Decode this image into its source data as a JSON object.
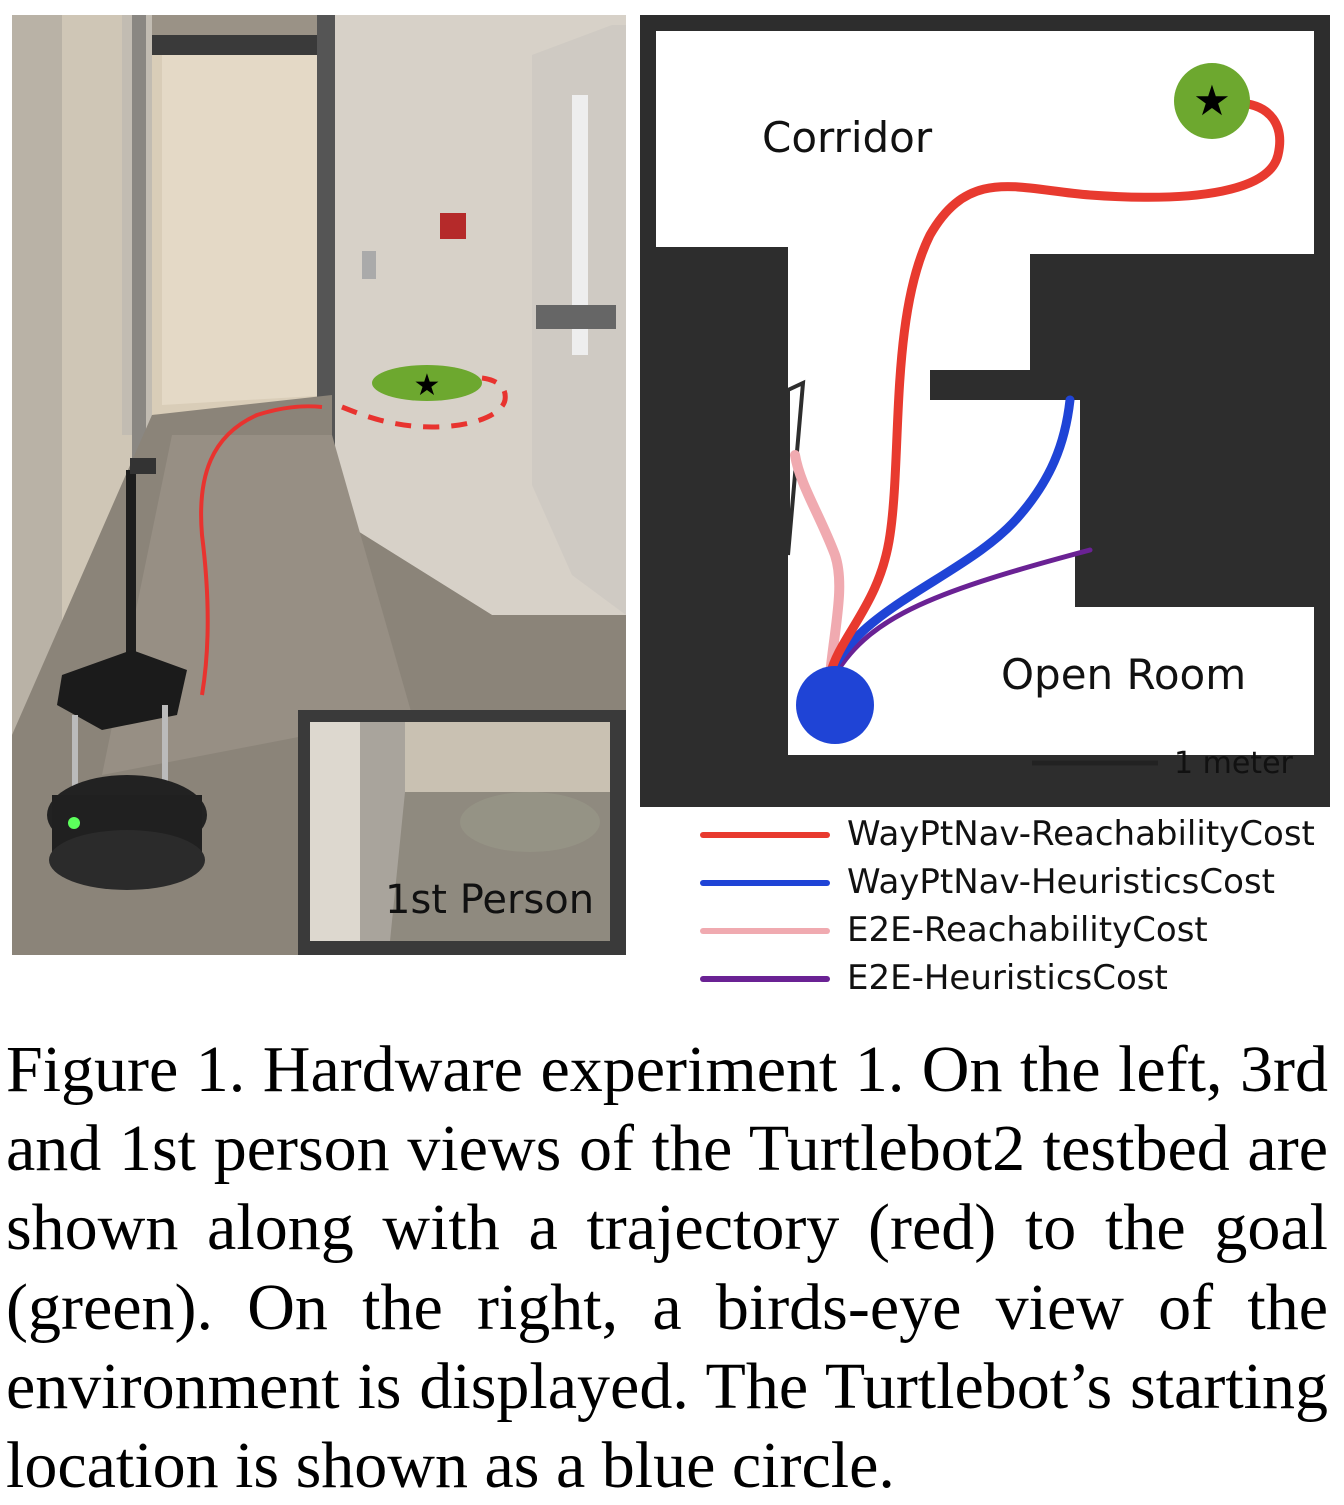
{
  "photo": {
    "inset_label": "1st Person"
  },
  "map": {
    "corridor_label": "Corridor",
    "open_room_label": "Open Room",
    "scale_label": "1 meter"
  },
  "legend": [
    {
      "label": "WayPtNav-ReachabilityCost",
      "color": "#e83a2f"
    },
    {
      "label": "WayPtNav-HeuristicsCost",
      "color": "#1f44d6"
    },
    {
      "label": "E2E-ReachabilityCost",
      "color": "#f0aab0"
    },
    {
      "label": "E2E-HeuristicsCost",
      "color": "#6a2294"
    }
  ],
  "caption": "Figure 1.  Hardware experiment 1.  On the left, 3rd and 1st person views of the Turtlebot2 testbed are shown along with a trajectory (red) to the goal (green). On the right, a birds-eye view of the environment is displayed. The Turtlebot’s starting location is shown as a blue circle."
}
